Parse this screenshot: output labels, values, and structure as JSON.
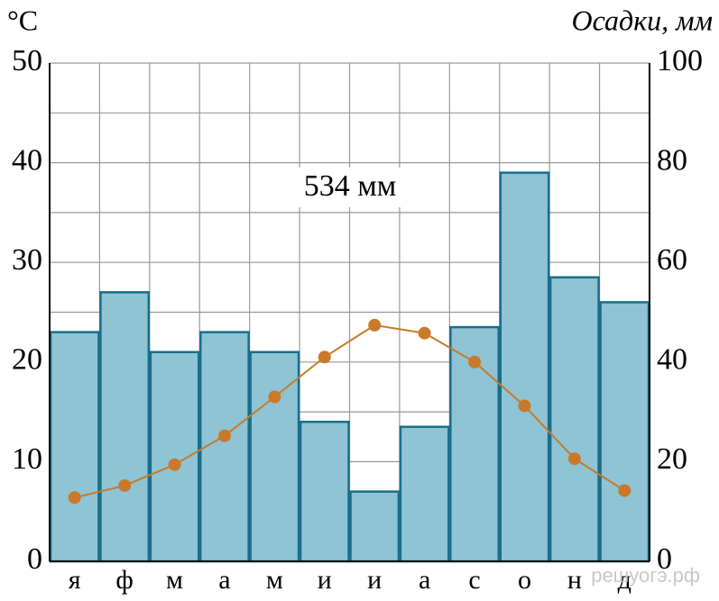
{
  "chart_data": {
    "type": "combo",
    "y_label": "°C",
    "y2_label": "Осадки, мм",
    "annotation": "534 мм",
    "watermark": "решуогэ.рф",
    "categories": [
      "я",
      "ф",
      "м",
      "а",
      "м",
      "и",
      "и",
      "а",
      "с",
      "о",
      "н",
      "д"
    ],
    "series": [
      {
        "name": "Осадки",
        "type": "bar",
        "axis": "y2",
        "color": "#8ec4d4",
        "values": [
          46,
          54,
          42,
          46,
          42,
          28,
          14,
          27,
          47,
          78,
          57,
          52
        ]
      },
      {
        "name": "Температура",
        "type": "line",
        "axis": "y",
        "color": "#c87a2a",
        "values": [
          6.4,
          7.6,
          9.7,
          12.6,
          16.5,
          20.5,
          23.7,
          22.9,
          20.0,
          15.6,
          10.3,
          7.1
        ]
      }
    ],
    "ylim": [
      0,
      50
    ],
    "yticks": [
      0,
      10,
      20,
      30,
      40,
      50
    ],
    "y2lim": [
      0,
      100
    ],
    "y2ticks": [
      0,
      20,
      40,
      60,
      80,
      100
    ],
    "grid": true,
    "minor_grid": true
  }
}
